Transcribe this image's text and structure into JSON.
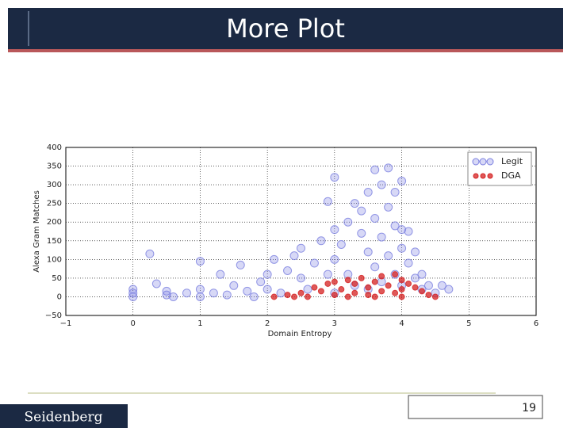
{
  "slide": {
    "title": "More Plot",
    "footer": "Seidenberg",
    "page_number": "19"
  },
  "chart_data": {
    "type": "scatter",
    "xlabel": "Domain Entropy",
    "ylabel": "Alexa Gram Matches",
    "xlim": [
      -1,
      6
    ],
    "xticks": [
      {
        "value": -1,
        "label": "−1"
      },
      0,
      1,
      2,
      3,
      4,
      5,
      6
    ],
    "ylim": [
      -50,
      400
    ],
    "yticks": [
      {
        "value": -50,
        "label": "−50"
      },
      0,
      50,
      100,
      150,
      200,
      250,
      300,
      350,
      400
    ],
    "grid": true,
    "legend": "upper right",
    "series": [
      {
        "name": "Legit",
        "color": "#7b7fe0",
        "x": [
          0,
          0,
          0,
          0.25,
          0.35,
          0.5,
          0.5,
          0.6,
          0.8,
          1,
          1,
          1,
          1.2,
          1.3,
          1.4,
          1.5,
          1.6,
          1.7,
          1.8,
          1.9,
          2,
          2,
          2.1,
          2.2,
          2.3,
          2.4,
          2.5,
          2.5,
          2.6,
          2.7,
          2.8,
          2.9,
          2.9,
          3,
          3,
          3,
          3,
          3.1,
          3.2,
          3.2,
          3.3,
          3.3,
          3.4,
          3.4,
          3.5,
          3.5,
          3.5,
          3.6,
          3.6,
          3.6,
          3.7,
          3.7,
          3.7,
          3.8,
          3.8,
          3.8,
          3.9,
          3.9,
          3.9,
          4,
          4,
          4,
          4,
          4.1,
          4.1,
          4.2,
          4.2,
          4.3,
          4.3,
          4.4,
          4.5,
          4.6,
          4.7
        ],
        "y": [
          10,
          20,
          0,
          115,
          35,
          15,
          5,
          0,
          10,
          95,
          20,
          0,
          10,
          60,
          5,
          30,
          85,
          15,
          0,
          40,
          60,
          20,
          100,
          10,
          70,
          110,
          50,
          130,
          20,
          90,
          150,
          60,
          255,
          180,
          100,
          10,
          320,
          140,
          200,
          60,
          250,
          30,
          170,
          230,
          280,
          120,
          20,
          340,
          210,
          80,
          300,
          160,
          40,
          240,
          110,
          345,
          280,
          60,
          190,
          310,
          180,
          130,
          30,
          175,
          90,
          120,
          50,
          60,
          20,
          30,
          10,
          30,
          20
        ]
      },
      {
        "name": "DGA",
        "color": "#d42020",
        "x": [
          2.1,
          2.3,
          2.5,
          2.6,
          2.7,
          2.8,
          2.9,
          3,
          3,
          3.1,
          3.2,
          3.3,
          3.3,
          3.4,
          3.5,
          3.5,
          3.6,
          3.7,
          3.7,
          3.8,
          3.9,
          3.9,
          4,
          4,
          4.1,
          4.2,
          4.3,
          4.4,
          4.5,
          3.2,
          3.6,
          4,
          2.4
        ],
        "y": [
          0,
          5,
          10,
          0,
          25,
          15,
          35,
          5,
          40,
          20,
          45,
          10,
          35,
          50,
          25,
          5,
          40,
          55,
          15,
          30,
          60,
          10,
          45,
          20,
          35,
          25,
          15,
          5,
          0,
          0,
          0,
          0,
          0
        ]
      }
    ]
  }
}
